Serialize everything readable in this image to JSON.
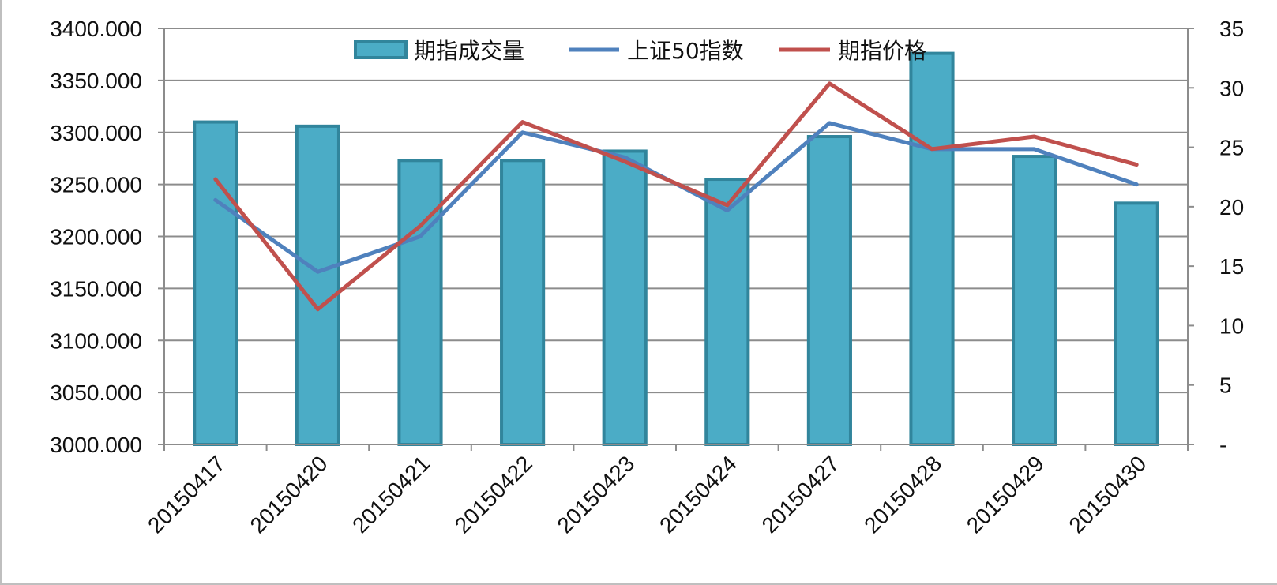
{
  "chart_data": {
    "type": "bar",
    "categories": [
      "20150417",
      "20150420",
      "20150421",
      "20150422",
      "20150423",
      "20150424",
      "20150427",
      "20150428",
      "20150429",
      "20150430"
    ],
    "series": [
      {
        "name": "期指成交量",
        "type": "bar",
        "axis": "left",
        "color": "#4bacc6",
        "values": [
          3310,
          3306,
          3273,
          3273,
          3282,
          3255,
          3296,
          3376,
          3277,
          3232
        ]
      },
      {
        "name": "上证50指数",
        "type": "line",
        "axis": "left",
        "color": "#4f81bd",
        "values": [
          3235,
          3166,
          3200,
          3300,
          3276,
          3225,
          3309,
          3284,
          3284,
          3250
        ]
      },
      {
        "name": "期指价格",
        "type": "line",
        "axis": "left",
        "color": "#c0504d",
        "values": [
          3255,
          3130,
          3210,
          3310,
          3272,
          3230,
          3347,
          3284,
          3296,
          3269
        ]
      }
    ],
    "y_left": {
      "min": 3000,
      "max": 3400,
      "step": 50,
      "tick_labels": [
        "3000.000",
        "3050.000",
        "3100.000",
        "3150.000",
        "3200.000",
        "3250.000",
        "3300.000",
        "3350.000",
        "3400.000"
      ]
    },
    "y_right": {
      "min": 0,
      "max": 35,
      "step": 5,
      "tick_labels": [
        "-",
        "5",
        "10",
        "15",
        "20",
        "25",
        "30",
        "35"
      ]
    },
    "grid": true,
    "legend_position": "top-center"
  }
}
